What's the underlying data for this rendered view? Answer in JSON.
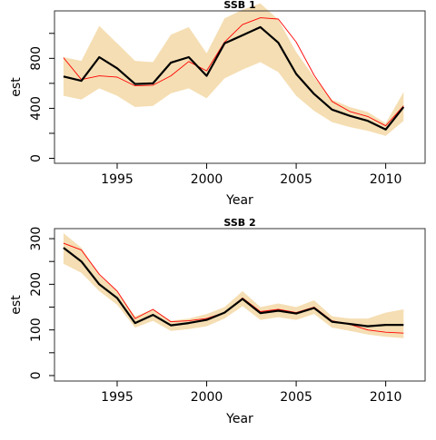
{
  "chart_data": [
    {
      "type": "line",
      "title": "SSB 1",
      "xlabel": "Year",
      "ylabel": "est",
      "xlim": [
        1991.5,
        2012.2
      ],
      "ylim": [
        -40,
        1180
      ],
      "xticks": [
        1995,
        2000,
        2005,
        2010
      ],
      "yticks": [
        0,
        200,
        400,
        600,
        800,
        1000
      ],
      "yticklabels": [
        "0",
        "",
        "400",
        "",
        "800",
        ""
      ],
      "x": [
        1992,
        1993,
        1994,
        1995,
        1996,
        1997,
        1998,
        1999,
        2000,
        2001,
        2002,
        2003,
        2004,
        2005,
        2006,
        2007,
        2008,
        2009,
        2010,
        2011
      ],
      "band": {
        "lower": [
          500,
          470,
          560,
          500,
          410,
          420,
          520,
          560,
          480,
          640,
          710,
          770,
          690,
          500,
          380,
          290,
          250,
          220,
          180,
          300
        ],
        "upper": [
          810,
          780,
          1060,
          920,
          780,
          770,
          990,
          1050,
          840,
          1120,
          1190,
          1240,
          1110,
          850,
          650,
          470,
          410,
          370,
          280,
          530
        ]
      },
      "series": [
        {
          "color": "#000000",
          "values": [
            655,
            620,
            810,
            720,
            595,
            600,
            765,
            810,
            660,
            920,
            985,
            1050,
            925,
            675,
            515,
            390,
            340,
            300,
            230,
            410
          ]
        },
        {
          "color": "#ff0000",
          "values": [
            805,
            630,
            660,
            650,
            580,
            585,
            660,
            775,
            700,
            930,
            1070,
            1125,
            1115,
            930,
            665,
            455,
            375,
            335,
            260,
            420
          ]
        }
      ],
      "band_color": "#f5deb3",
      "grid": false
    },
    {
      "type": "line",
      "title": "SSB 2",
      "xlabel": "Year",
      "ylabel": "est",
      "xlim": [
        1991.5,
        2012.2
      ],
      "ylim": [
        -12,
        322
      ],
      "xticks": [
        1995,
        2000,
        2005,
        2010
      ],
      "yticks": [
        0,
        50,
        100,
        150,
        200,
        250,
        300
      ],
      "yticklabels": [
        "0",
        "",
        "100",
        "",
        "200",
        "",
        "300"
      ],
      "x": [
        1992,
        1993,
        1994,
        1995,
        1996,
        1997,
        1998,
        1999,
        2000,
        2001,
        2002,
        2003,
        2004,
        2005,
        2006,
        2007,
        2008,
        2009,
        2010,
        2011
      ],
      "band": {
        "lower": [
          245,
          225,
          185,
          155,
          105,
          120,
          98,
          102,
          108,
          125,
          152,
          122,
          128,
          122,
          135,
          105,
          98,
          90,
          85,
          82
        ],
        "upper": [
          312,
          280,
          220,
          185,
          130,
          145,
          120,
          125,
          135,
          150,
          185,
          150,
          158,
          150,
          165,
          130,
          125,
          125,
          138,
          145
        ]
      },
      "series": [
        {
          "color": "#000000",
          "values": [
            280,
            250,
            200,
            170,
            115,
            133,
            110,
            115,
            122,
            138,
            168,
            137,
            142,
            136,
            148,
            118,
            113,
            108,
            111,
            111
          ]
        },
        {
          "color": "#ff0000",
          "values": [
            290,
            275,
            222,
            185,
            125,
            145,
            118,
            120,
            125,
            138,
            170,
            140,
            145,
            138,
            150,
            120,
            112,
            100,
            95,
            93
          ]
        }
      ],
      "band_color": "#f5deb3",
      "grid": false
    }
  ]
}
